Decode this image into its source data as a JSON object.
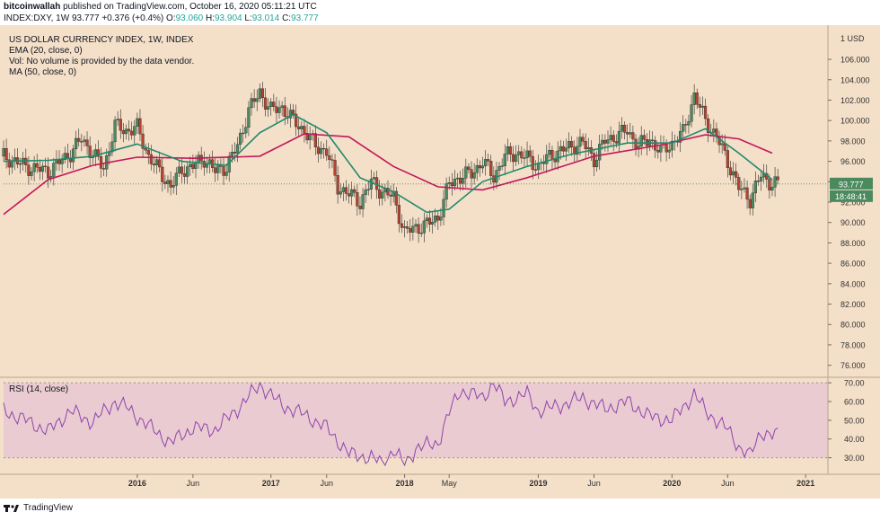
{
  "header": {
    "publisher": "bitcoinwallah",
    "published_text": "published on TradingView.com, October 16, 2020 05:11:21 UTC",
    "symbol_info": "INDEX:DXY, 1W",
    "last": "93.777",
    "change": "+0.376 (+0.4%)",
    "o_label": "O:",
    "o_value": "93.060",
    "h_label": "H:",
    "h_value": "93.904",
    "l_label": "L:",
    "l_value": "93.014",
    "c_label": "C:",
    "c_value": "93.777"
  },
  "legend": {
    "title": "US DOLLAR CURRENCY INDEX, 1W, INDEX",
    "ema": "EMA (20, close, 0)",
    "vol": "Vol: No volume is provided by the data vendor.",
    "ma": "MA (50, close, 0)",
    "rsi": "RSI (14, close)"
  },
  "footer": {
    "brand": "TradingView"
  },
  "colors": {
    "background": "#f4dfc8",
    "rsi_band": "#e8c8d2",
    "up_candle": "#4a8a5e",
    "down_candle": "#b5442e",
    "ema_line": "#1f8a6e",
    "ma_line": "#c2185b",
    "rsi_line": "#8e44ad",
    "price_tag": "#4a8a5e"
  },
  "chart_data": [
    {
      "type": "candlestick",
      "title": "US DOLLAR CURRENCY INDEX, 1W, INDEX",
      "currency_label": "USD",
      "currency_multiplier": "1",
      "ylim": [
        75,
        109
      ],
      "y_ticks": [
        "76.000",
        "78.000",
        "80.000",
        "82.000",
        "84.000",
        "86.000",
        "88.000",
        "90.000",
        "92.000",
        "94.000",
        "96.000",
        "98.000",
        "100.000",
        "102.000",
        "104.000",
        "106.000"
      ],
      "x_ticks": [
        "2016",
        "Jun",
        "2017",
        "Jun",
        "2018",
        "May",
        "2019",
        "Jun",
        "2020",
        "Jun",
        "2021"
      ],
      "x_tick_dates": [
        "2016-01",
        "2016-06",
        "2017-01",
        "2017-06",
        "2018-01",
        "2018-05",
        "2019-01",
        "2019-06",
        "2020-01",
        "2020-06",
        "2021-01"
      ],
      "x_range": [
        "2015-01",
        "2021-03"
      ],
      "last_price": "93.777",
      "countdown": "18:48:41",
      "close_path": [
        [
          "2015-01",
          96.5
        ],
        [
          "2015-03",
          95.5
        ],
        [
          "2015-05",
          95.0
        ],
        [
          "2015-07",
          96.8
        ],
        [
          "2015-08",
          98.2
        ],
        [
          "2015-10",
          95.3
        ],
        [
          "2015-11",
          99.5
        ],
        [
          "2015-12",
          99.0
        ],
        [
          "2016-01",
          99.3
        ],
        [
          "2016-02",
          96.5
        ],
        [
          "2016-03",
          95.0
        ],
        [
          "2016-04",
          93.5
        ],
        [
          "2016-05",
          95.2
        ],
        [
          "2016-06",
          95.5
        ],
        [
          "2016-07",
          96.3
        ],
        [
          "2016-08",
          95.0
        ],
        [
          "2016-09",
          95.5
        ],
        [
          "2016-10",
          97.5
        ],
        [
          "2016-11",
          101.0
        ],
        [
          "2016-12",
          102.8
        ],
        [
          "2017-01",
          101.0
        ],
        [
          "2017-02",
          101.3
        ],
        [
          "2017-03",
          100.0
        ],
        [
          "2017-04",
          99.0
        ],
        [
          "2017-05",
          97.5
        ],
        [
          "2017-06",
          97.0
        ],
        [
          "2017-07",
          93.5
        ],
        [
          "2017-08",
          92.8
        ],
        [
          "2017-09",
          92.0
        ],
        [
          "2017-10",
          94.0
        ],
        [
          "2017-11",
          93.0
        ],
        [
          "2017-12",
          92.5
        ],
        [
          "2018-01",
          89.0
        ],
        [
          "2018-02",
          89.5
        ],
        [
          "2018-03",
          89.8
        ],
        [
          "2018-04",
          90.5
        ],
        [
          "2018-05",
          93.8
        ],
        [
          "2018-06",
          94.5
        ],
        [
          "2018-07",
          94.8
        ],
        [
          "2018-08",
          96.0
        ],
        [
          "2018-09",
          94.5
        ],
        [
          "2018-10",
          96.5
        ],
        [
          "2018-11",
          96.8
        ],
        [
          "2018-12",
          96.3
        ],
        [
          "2019-01",
          95.5
        ],
        [
          "2019-02",
          96.5
        ],
        [
          "2019-03",
          97.0
        ],
        [
          "2019-04",
          97.5
        ],
        [
          "2019-05",
          97.8
        ],
        [
          "2019-06",
          96.2
        ],
        [
          "2019-07",
          98.0
        ],
        [
          "2019-08",
          98.5
        ],
        [
          "2019-09",
          99.0
        ],
        [
          "2019-10",
          97.5
        ],
        [
          "2019-11",
          98.2
        ],
        [
          "2019-12",
          96.9
        ],
        [
          "2020-01",
          97.8
        ],
        [
          "2020-02",
          98.8
        ],
        [
          "2020-03",
          102.5
        ],
        [
          "2020-04",
          100.0
        ],
        [
          "2020-05",
          98.4
        ],
        [
          "2020-06",
          96.0
        ],
        [
          "2020-07",
          93.4
        ],
        [
          "2020-08",
          92.3
        ],
        [
          "2020-09",
          94.6
        ],
        [
          "2020-10",
          93.8
        ]
      ],
      "ema20_path": [
        [
          "2015-01",
          96.0
        ],
        [
          "2015-05",
          96.1
        ],
        [
          "2015-09",
          96.5
        ],
        [
          "2016-01",
          97.7
        ],
        [
          "2016-05",
          96.0
        ],
        [
          "2016-09",
          95.6
        ],
        [
          "2016-12",
          98.8
        ],
        [
          "2017-03",
          100.6
        ],
        [
          "2017-06",
          98.8
        ],
        [
          "2017-09",
          94.4
        ],
        [
          "2017-12",
          93.0
        ],
        [
          "2018-03",
          91.0
        ],
        [
          "2018-05",
          91.3
        ],
        [
          "2018-08",
          94.0
        ],
        [
          "2018-12",
          95.5
        ],
        [
          "2019-04",
          96.7
        ],
        [
          "2019-09",
          97.8
        ],
        [
          "2020-01",
          97.8
        ],
        [
          "2020-04",
          99.2
        ],
        [
          "2020-07",
          96.8
        ],
        [
          "2020-10",
          94.2
        ]
      ],
      "ma50_path": [
        [
          "2015-01",
          90.8
        ],
        [
          "2015-05",
          94.2
        ],
        [
          "2015-09",
          95.6
        ],
        [
          "2016-01",
          96.4
        ],
        [
          "2016-06",
          96.3
        ],
        [
          "2016-12",
          96.5
        ],
        [
          "2017-04",
          98.7
        ],
        [
          "2017-08",
          98.4
        ],
        [
          "2017-12",
          95.5
        ],
        [
          "2018-04",
          93.5
        ],
        [
          "2018-08",
          93.2
        ],
        [
          "2018-12",
          94.4
        ],
        [
          "2019-06",
          96.5
        ],
        [
          "2019-12",
          97.6
        ],
        [
          "2020-04",
          98.6
        ],
        [
          "2020-07",
          98.2
        ],
        [
          "2020-10",
          96.8
        ]
      ]
    },
    {
      "type": "line",
      "title": "RSI (14, close)",
      "ylim": [
        25,
        72
      ],
      "y_ticks": [
        "30.00",
        "40.00",
        "50.00",
        "60.00",
        "70.00"
      ],
      "band": [
        30,
        70
      ],
      "series": [
        {
          "values": [
            [
              "2015-01",
              55
            ],
            [
              "2015-03",
              50
            ],
            [
              "2015-05",
              44
            ],
            [
              "2015-07",
              55
            ],
            [
              "2015-09",
              49
            ],
            [
              "2015-11",
              60
            ],
            [
              "2015-12",
              57
            ],
            [
              "2016-02",
              47
            ],
            [
              "2016-04",
              38
            ],
            [
              "2016-06",
              46
            ],
            [
              "2016-08",
              45
            ],
            [
              "2016-10",
              56
            ],
            [
              "2016-12",
              69
            ],
            [
              "2017-02",
              58
            ],
            [
              "2017-04",
              53
            ],
            [
              "2017-06",
              46
            ],
            [
              "2017-08",
              32
            ],
            [
              "2017-10",
              30
            ],
            [
              "2017-11",
              27
            ],
            [
              "2017-12",
              34
            ],
            [
              "2018-01",
              26
            ],
            [
              "2018-02",
              35
            ],
            [
              "2018-04",
              38
            ],
            [
              "2018-05",
              54
            ],
            [
              "2018-06",
              66
            ],
            [
              "2018-08",
              62
            ],
            [
              "2018-09",
              70
            ],
            [
              "2018-10",
              60
            ],
            [
              "2018-12",
              64
            ],
            [
              "2019-01",
              55
            ],
            [
              "2019-03",
              58
            ],
            [
              "2019-05",
              62
            ],
            [
              "2019-07",
              56
            ],
            [
              "2019-09",
              60
            ],
            [
              "2019-11",
              52
            ],
            [
              "2020-01",
              50
            ],
            [
              "2020-03",
              64
            ],
            [
              "2020-04",
              55
            ],
            [
              "2020-06",
              45
            ],
            [
              "2020-07",
              36
            ],
            [
              "2020-08",
              31
            ],
            [
              "2020-09",
              44
            ],
            [
              "2020-10",
              42
            ]
          ]
        }
      ]
    }
  ]
}
